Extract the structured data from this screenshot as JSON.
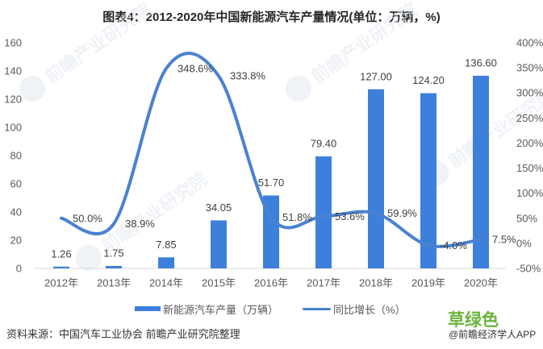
{
  "title": "图表4：2012-2020年中国新能源汽车产量情况(单位：万辆，%)",
  "source": "资料来源：中国汽车工业协会 前瞻产业研究院整理",
  "watermark": {
    "brand": "前瞻产业研究院",
    "stamp": "草绿色",
    "app": "@前瞻经济学人APP"
  },
  "colors": {
    "bar": "#3D80DC",
    "line": "#4A82D0",
    "axis_line": "#D9D9D9",
    "axis_text": "#595959",
    "label_text": "#404040",
    "stamp": "#6AB43C",
    "watermark": "#E3E8F0"
  },
  "legend": [
    {
      "label": "新能源汽车产量（万辆）",
      "type": "bar"
    },
    {
      "label": "同比增长（%）",
      "type": "line"
    }
  ],
  "chart_data": {
    "type": "bar",
    "title": "图表4：2012-2020年中国新能源汽车产量情况(单位：万辆，%)",
    "xlabel": "",
    "ylabel": "",
    "categories": [
      "2012年",
      "2013年",
      "2014年",
      "2015年",
      "2016年",
      "2017年",
      "2018年",
      "2019年",
      "2020年"
    ],
    "series": [
      {
        "name": "新能源汽车产量（万辆）",
        "chart_type": "bar",
        "axis": "left",
        "values": [
          1.26,
          1.75,
          7.85,
          34.05,
          51.7,
          79.4,
          127.0,
          124.2,
          136.6
        ],
        "labels": [
          "1.26",
          "1.75",
          "7.85",
          "34.05",
          "51.70",
          "79.40",
          "127.00",
          "124.20",
          "136.60"
        ]
      },
      {
        "name": "同比增长（%）",
        "chart_type": "line",
        "smooth": true,
        "axis": "right",
        "values": [
          50.0,
          38.9,
          348.6,
          333.8,
          51.8,
          53.6,
          59.9,
          -4.0,
          7.5
        ],
        "labels": [
          "50.0%",
          "38.9%",
          "348.6%",
          "333.8%",
          "51.8%",
          "53.6%",
          "59.9%",
          "-4.0%",
          "7.5%"
        ]
      }
    ],
    "ylim": [
      0,
      160
    ],
    "y_ticks": [
      "0",
      "20",
      "40",
      "60",
      "80",
      "100",
      "120",
      "140",
      "160"
    ],
    "y2lim": [
      -50,
      400
    ],
    "y2_ticks": [
      "-50%",
      "0%",
      "50%",
      "100%",
      "150%",
      "200%",
      "250%",
      "300%",
      "350%",
      "400%"
    ],
    "grid": false,
    "legend_position": "bottom"
  }
}
